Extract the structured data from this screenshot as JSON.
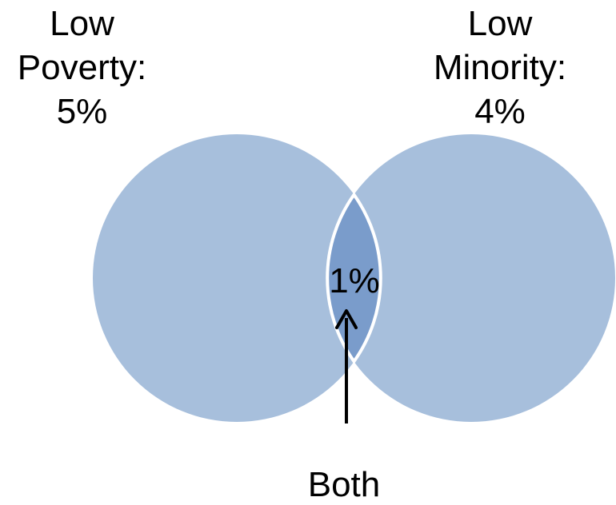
{
  "colors": {
    "circle_fill": "#a7bfdc",
    "overlap_fill": "#7a9ccb",
    "overlap_outline": "#ffffff",
    "text": "#000000",
    "arrow": "#000000"
  },
  "left_set": {
    "line1": "Low",
    "line2": "Poverty:",
    "line3": "5%",
    "percent": 5
  },
  "right_set": {
    "line1": "Low",
    "line2": "Minority:",
    "line3": "4%",
    "percent": 4
  },
  "intersection": {
    "label": "1%",
    "percent": 1
  },
  "callout": {
    "label": "Both"
  }
}
